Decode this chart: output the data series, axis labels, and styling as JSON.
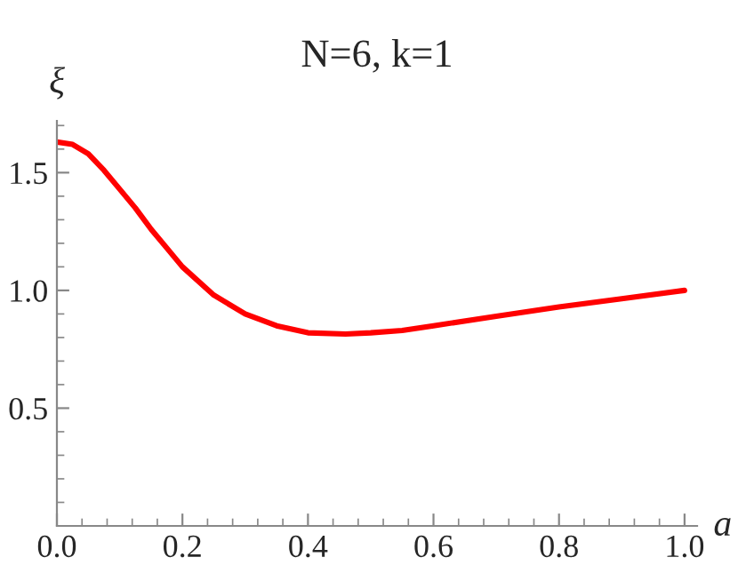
{
  "chart_data": {
    "type": "line",
    "title": "N=6, k=1",
    "xlabel": "a",
    "ylabel": "ξ",
    "x": [
      0,
      0.025,
      0.05,
      0.075,
      0.1,
      0.125,
      0.15,
      0.175,
      0.2,
      0.25,
      0.3,
      0.35,
      0.4,
      0.46,
      0.5,
      0.55,
      0.6,
      0.7,
      0.8,
      0.9,
      1.0
    ],
    "series": [
      {
        "color": "#ff0000",
        "values": [
          1.63,
          1.62,
          1.58,
          1.51,
          1.43,
          1.35,
          1.26,
          1.18,
          1.1,
          0.98,
          0.9,
          0.85,
          0.82,
          0.815,
          0.82,
          0.83,
          0.85,
          0.89,
          0.93,
          0.965,
          1.0
        ]
      }
    ],
    "xlim": [
      0,
      1.02
    ],
    "ylim": [
      0,
      1.72
    ],
    "xticks": [
      {
        "value": 0,
        "label": "0.0"
      },
      0.2,
      0.4,
      0.6,
      0.8,
      {
        "value": 1,
        "label": "1.0"
      }
    ],
    "yticks": [
      0.5,
      {
        "value": 1,
        "label": "1.0"
      },
      1.5
    ],
    "grid": false,
    "legend": false,
    "marker": "none",
    "line_style": "solid"
  }
}
